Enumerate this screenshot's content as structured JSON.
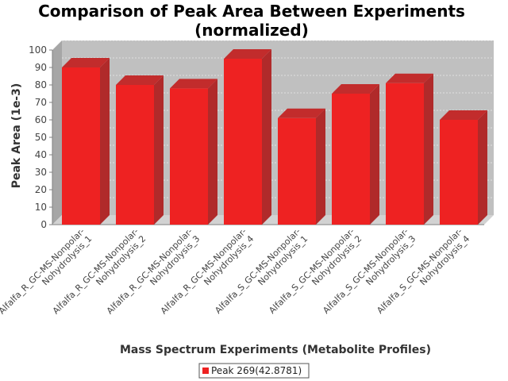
{
  "chart_data": {
    "type": "bar",
    "title": [
      "Comparison of Peak Area Between Experiments",
      "(normalized)"
    ],
    "xlabel": "Mass Spectrum Experiments (Metabolite Profiles)",
    "ylabel": "Peak Area (1e-3)",
    "ylim": [
      0,
      100
    ],
    "yticks": [
      0,
      10,
      20,
      30,
      40,
      50,
      60,
      70,
      80,
      90,
      100
    ],
    "grid": true,
    "legend_position": "bottom",
    "categories": [
      [
        "Alfalfa_R_GC-MS-Nonpolar-",
        "Nohydrolysis_1"
      ],
      [
        "Alfalfa_R_GC-MS-Nonpolar-",
        "Nohydrolysis_2"
      ],
      [
        "Alfalfa_R_GC-MS-Nonpolar-",
        "Nohydrolysis_3"
      ],
      [
        "Alfalfa_R_GC-MS-Nonpolar-",
        "Nohydrolysis_4"
      ],
      [
        "Alfalfa_S_GC-MS-Nonpolar-",
        "Nohydrolysis_1"
      ],
      [
        "Alfalfa_S_GC-MS-Nonpolar-",
        "Nohydrolysis_2"
      ],
      [
        "Alfalfa_S_GC-MS-Nonpolar-",
        "Nohydrolysis_3"
      ],
      [
        "Alfalfa_S_GC-MS-Nonpolar-",
        "Nohydrolysis_4"
      ]
    ],
    "series": [
      {
        "name": "Peak 269(42.8781)",
        "color": "#ee2222",
        "values": [
          90,
          80,
          78,
          95,
          61,
          75,
          81,
          60
        ]
      }
    ]
  }
}
